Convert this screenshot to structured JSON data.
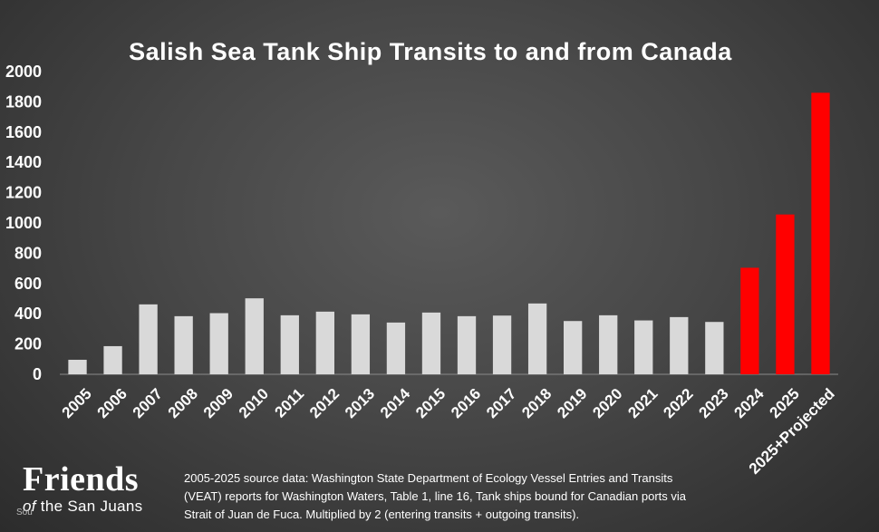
{
  "chart_data": {
    "type": "bar",
    "title": "Salish Sea Tank Ship Transits to and from Canada",
    "xlabel": "",
    "ylabel": "",
    "ylim": [
      0,
      2000
    ],
    "yticks": [
      0,
      200,
      400,
      600,
      800,
      1000,
      1200,
      1400,
      1600,
      1800,
      2000
    ],
    "categories": [
      "2005",
      "2006",
      "2007",
      "2008",
      "2009",
      "2010",
      "2011",
      "2012",
      "2013",
      "2014",
      "2015",
      "2016",
      "2017",
      "2018",
      "2019",
      "2020",
      "2021",
      "2022",
      "2023",
      "2024",
      "2025",
      "2025+Projected"
    ],
    "values": [
      96,
      186,
      462,
      384,
      404,
      502,
      390,
      414,
      396,
      342,
      408,
      384,
      388,
      468,
      352,
      390,
      356,
      378,
      346,
      704,
      1056,
      1860
    ],
    "bar_colors": [
      "#d9d9d9",
      "#d9d9d9",
      "#d9d9d9",
      "#d9d9d9",
      "#d9d9d9",
      "#d9d9d9",
      "#d9d9d9",
      "#d9d9d9",
      "#d9d9d9",
      "#d9d9d9",
      "#d9d9d9",
      "#d9d9d9",
      "#d9d9d9",
      "#d9d9d9",
      "#d9d9d9",
      "#d9d9d9",
      "#d9d9d9",
      "#d9d9d9",
      "#d9d9d9",
      "#ff0000",
      "#ff0000",
      "#ff0000"
    ],
    "grid": false,
    "legend": "none"
  },
  "source_note": "2005-2025 source data: Washington State Department of Ecology Vessel Entries and Transits (VEAT) reports for Washington Waters, Table 1, line 16, Tank ships bound for Canadian ports via Strait of Juan de Fuca. Multiplied by 2 (entering transits + outgoing transits).",
  "logo": {
    "main": "Friends",
    "sub_of": "of",
    "sub_rest": " the San Juans",
    "tag": "Sou"
  }
}
